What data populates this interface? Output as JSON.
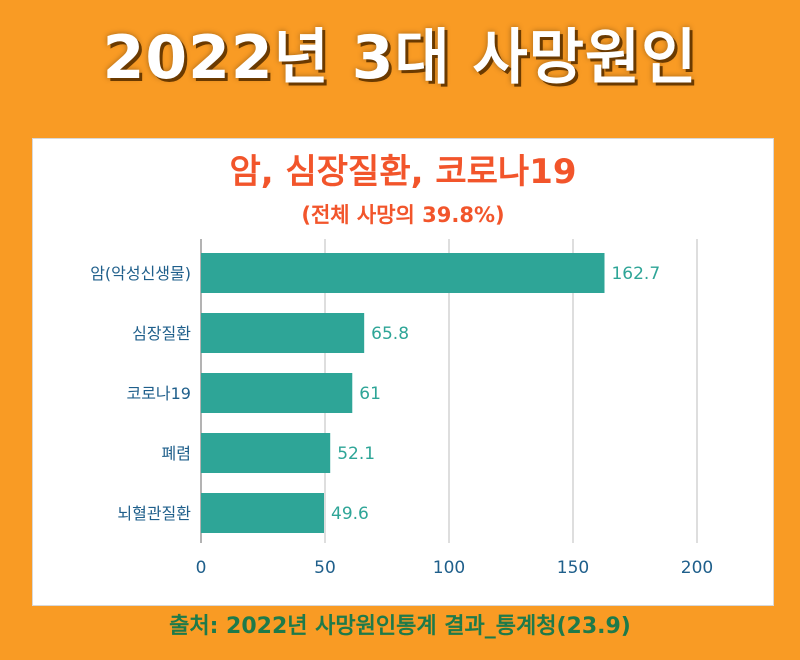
{
  "header": {
    "title": "2022년 3대 사망원인"
  },
  "chart_data": {
    "type": "bar",
    "orientation": "horizontal",
    "title": "암, 심장질환, 코로나19",
    "subtitle": "(전체 사망의 39.8%)",
    "categories": [
      "암(악성신생물)",
      "심장질환",
      "코로나19",
      "폐렴",
      "뇌혈관질환"
    ],
    "values": [
      162.7,
      65.8,
      61,
      52.1,
      49.6
    ],
    "value_labels": [
      "162.7",
      "65.8",
      "61",
      "52.1",
      "49.6"
    ],
    "xticks": [
      "0",
      "50",
      "100",
      "150",
      "200"
    ],
    "xlim": [
      0,
      200
    ],
    "grid": true,
    "bar_color": "#2ea597",
    "value_label_color": "#2ea597",
    "axis_text_color": "#1f5f8b"
  },
  "footer": {
    "source": "출처: 2022년 사망원인통계 결과_통계청(23.9)"
  },
  "colors": {
    "background": "#f99b24",
    "panel": "#ffffff",
    "accent": "#f2552b",
    "source_text": "#1e7a4a"
  }
}
